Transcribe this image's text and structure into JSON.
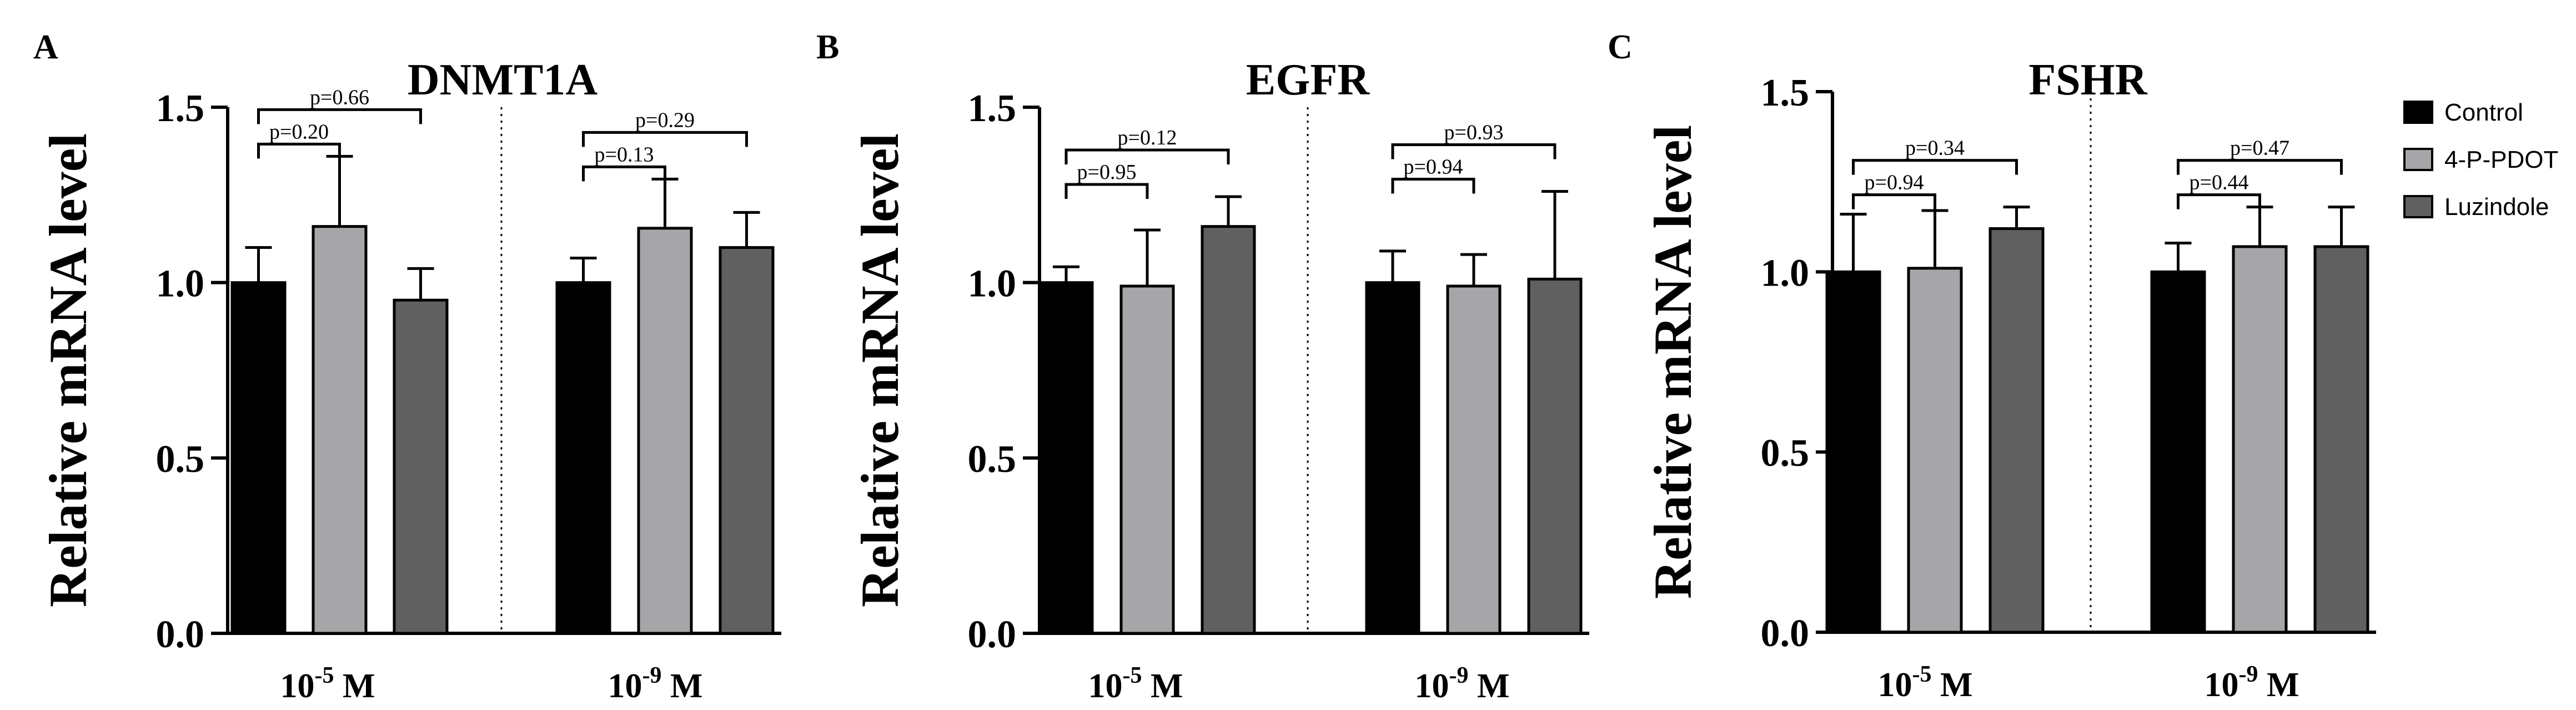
{
  "legend": [
    {
      "label": "Control",
      "color": "#000000"
    },
    {
      "label": "4-P-PDOT",
      "color": "#a6a6a8"
    },
    {
      "label": "Luzindole",
      "color": "#606060"
    }
  ],
  "chart_data": [
    {
      "type": "bar",
      "panel_label": "A",
      "title": "DNMT1A",
      "ylabel": "Relative mRNA level",
      "ylim": [
        0,
        1.5
      ],
      "yticks": [
        "0.0",
        "0.5",
        "1.0",
        "1.5"
      ],
      "groups": [
        {
          "base": "10",
          "exp": "-5",
          "unit": " M",
          "values": [
            1.0,
            1.16,
            0.95
          ],
          "errors": [
            0.1,
            0.2,
            0.09
          ],
          "brackets": [
            {
              "from": 0,
              "to": 1,
              "label": "p=0.20"
            },
            {
              "from": 0,
              "to": 2,
              "label": "p=0.66"
            }
          ]
        },
        {
          "base": "10",
          "exp": "-9",
          "unit": " M",
          "values": [
            1.0,
            1.155,
            1.1
          ],
          "errors": [
            0.07,
            0.14,
            0.1
          ],
          "brackets": [
            {
              "from": 0,
              "to": 1,
              "label": "p=0.13"
            },
            {
              "from": 0,
              "to": 2,
              "label": "p=0.29"
            }
          ]
        }
      ]
    },
    {
      "type": "bar",
      "panel_label": "B",
      "title": "EGFR",
      "ylabel": "Relative mRNA level",
      "ylim": [
        0,
        1.5
      ],
      "yticks": [
        "0.0",
        "0.5",
        "1.0",
        "1.5"
      ],
      "groups": [
        {
          "base": "10",
          "exp": "-5",
          "unit": " M",
          "values": [
            1.0,
            0.99,
            1.16
          ],
          "errors": [
            0.045,
            0.16,
            0.085
          ],
          "brackets": [
            {
              "from": 0,
              "to": 1,
              "label": "p=0.95"
            },
            {
              "from": 0,
              "to": 2,
              "label": "p=0.12"
            }
          ]
        },
        {
          "base": "10",
          "exp": "-9",
          "unit": " M",
          "values": [
            1.0,
            0.99,
            1.01
          ],
          "errors": [
            0.09,
            0.09,
            0.25
          ],
          "brackets": [
            {
              "from": 0,
              "to": 1,
              "label": "p=0.94"
            },
            {
              "from": 0,
              "to": 2,
              "label": "p=0.93"
            }
          ]
        }
      ]
    },
    {
      "type": "bar",
      "panel_label": "C",
      "title": "FSHR",
      "ylabel": "Relative mRNA level",
      "ylim": [
        0,
        1.5
      ],
      "yticks": [
        "0.0",
        "0.5",
        "1.0",
        "1.5"
      ],
      "groups": [
        {
          "base": "10",
          "exp": "-5",
          "unit": " M",
          "values": [
            1.0,
            1.01,
            1.12
          ],
          "errors": [
            0.16,
            0.16,
            0.06
          ],
          "brackets": [
            {
              "from": 0,
              "to": 1,
              "label": "p=0.94"
            },
            {
              "from": 0,
              "to": 2,
              "label": "p=0.34"
            }
          ]
        },
        {
          "base": "10",
          "exp": "-9",
          "unit": " M",
          "values": [
            1.0,
            1.07,
            1.07
          ],
          "errors": [
            0.08,
            0.11,
            0.11
          ],
          "brackets": [
            {
              "from": 0,
              "to": 1,
              "label": "p=0.44"
            },
            {
              "from": 0,
              "to": 2,
              "label": "p=0.47"
            }
          ]
        }
      ]
    }
  ]
}
